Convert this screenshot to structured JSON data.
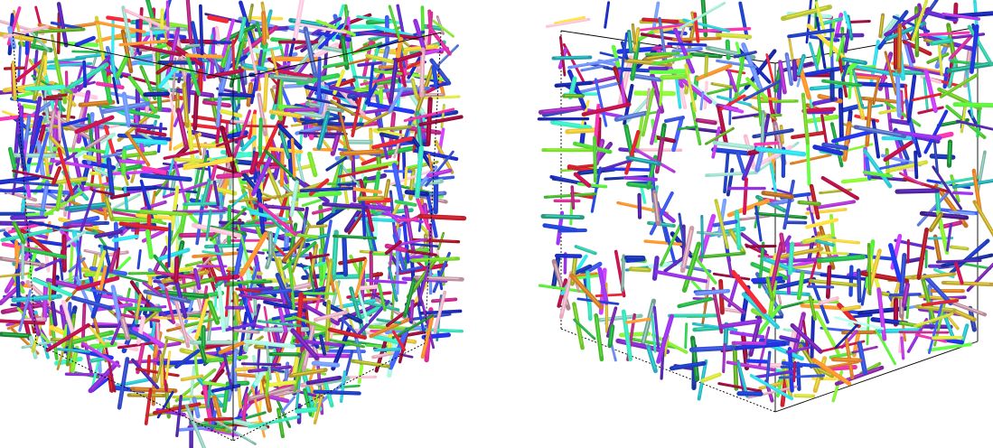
{
  "figure": {
    "panels": [
      {
        "id": "left",
        "description_key": "dense-fiber-packing",
        "seed": 11,
        "count": 1500,
        "fill": "box"
      },
      {
        "id": "right",
        "description_key": "sparse-fiber-packing-with-voids",
        "seed": 23,
        "count": 760,
        "fill": "box-with-voids"
      }
    ],
    "palette": [
      "#1f2fd1",
      "#2140c8",
      "#3a55e6",
      "#2ec8d6",
      "#39d9b0",
      "#58e63a",
      "#7bdc2f",
      "#2bb34a",
      "#d8232f",
      "#b3124a",
      "#e0309a",
      "#b43ae0",
      "#8a2fd6",
      "#f08a2c",
      "#e7c23a",
      "#9fe8d2",
      "#f2b3c6",
      "#c9d23a",
      "#6a8cff",
      "#5b2bb8"
    ]
  }
}
